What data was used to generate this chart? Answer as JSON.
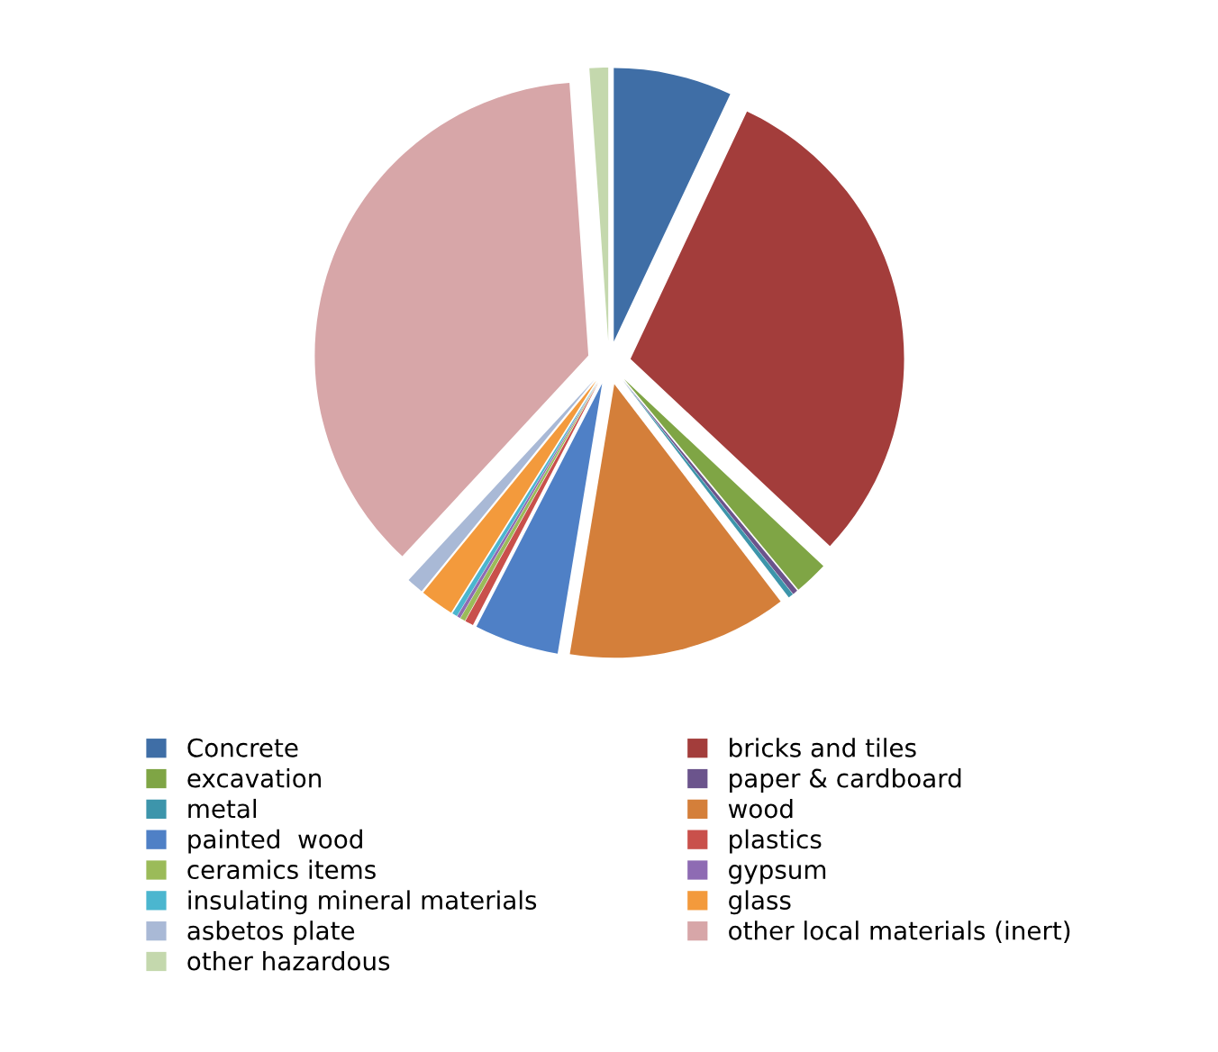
{
  "chart_data": {
    "type": "pie",
    "categories": [
      "Concrete",
      "bricks and tiles",
      "excavation",
      "paper & cardboard",
      "metal",
      "wood",
      "painted  wood",
      "plastics",
      "ceramics items",
      "gypsum",
      "insulating mineral materials",
      "glass",
      "asbetos plate",
      "other local materials (inert)",
      "other hazardous"
    ],
    "values": [
      7,
      30,
      2,
      0.3,
      0.3,
      13,
      5,
      0.5,
      0.3,
      0.2,
      0.3,
      2,
      1,
      37,
      1.1
    ],
    "colors": [
      "#3f6ea6",
      "#a33d3b",
      "#7fa545",
      "#6b548c",
      "#3d95ab",
      "#d47f3a",
      "#4f80c6",
      "#c9504b",
      "#9bbb59",
      "#8e6bb3",
      "#4bb6cf",
      "#f39a3c",
      "#a9b9d6",
      "#d7a6a8",
      "#c4d8ad"
    ],
    "legend": "bottom"
  }
}
